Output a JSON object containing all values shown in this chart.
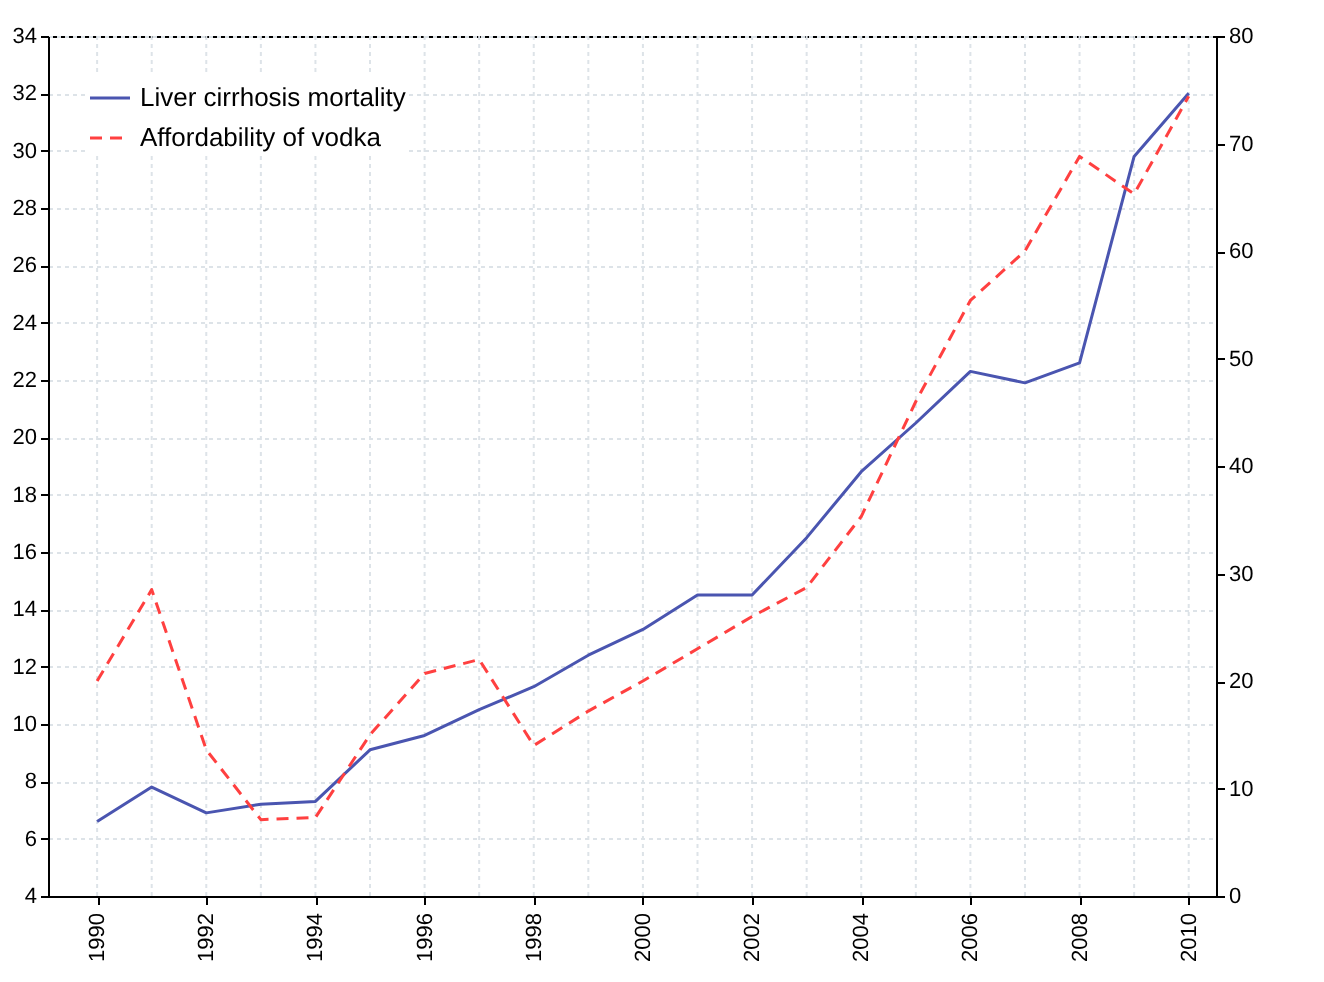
{
  "chart_data": {
    "type": "line",
    "x": [
      1990,
      1991,
      1992,
      1993,
      1994,
      1995,
      1996,
      1997,
      1998,
      1999,
      2000,
      2001,
      2002,
      2003,
      2004,
      2005,
      2006,
      2007,
      2008,
      2009,
      2010
    ],
    "series": [
      {
        "name": "Liver cirrhosis mortality",
        "color": "#4a55b0",
        "line_style": "solid",
        "values": [
          6.6,
          7.8,
          6.9,
          7.2,
          7.3,
          9.1,
          9.6,
          10.5,
          11.3,
          12.4,
          13.3,
          14.5,
          14.5,
          16.5,
          18.8,
          20.5,
          22.3,
          21.9,
          22.6,
          29.8,
          32.0
        ]
      },
      {
        "name": "Affordability of vodka",
        "color": "#ff4040",
        "line_style": "dashed",
        "axis": "y2",
        "values": [
          20.0,
          28.5,
          13.6,
          7.1,
          7.3,
          15,
          20.7,
          22,
          14,
          17.2,
          20,
          23,
          26,
          28.7,
          35.3,
          46,
          55.4,
          60,
          68.8,
          65.3,
          74.4
        ]
      }
    ],
    "xlim": [
      1989.1,
      2010.5
    ],
    "xticks": [
      1990,
      {
        "value": 1991,
        "label": null
      },
      1992,
      {
        "value": 1993,
        "label": null
      },
      1994,
      {
        "value": 1995,
        "label": null
      },
      1996,
      {
        "value": 1997,
        "label": null
      },
      1998,
      {
        "value": 1999,
        "label": null
      },
      2000,
      {
        "value": 2001,
        "label": null
      },
      2002,
      {
        "value": 2003,
        "label": null
      },
      2004,
      {
        "value": 2005,
        "label": null
      },
      2006,
      {
        "value": 2007,
        "label": null
      },
      2008,
      {
        "value": 2009,
        "label": null
      },
      2010
    ],
    "ylim": [
      4,
      34
    ],
    "yticks": [
      4,
      6,
      8,
      10,
      12,
      14,
      16,
      18,
      20,
      22,
      24,
      26,
      28,
      30,
      32,
      34
    ],
    "y2lim": [
      0,
      80
    ],
    "y2ticks": [
      0,
      10,
      20,
      30,
      40,
      50,
      60,
      70,
      80
    ],
    "grid": true,
    "legend": "top left",
    "marker": "none"
  }
}
